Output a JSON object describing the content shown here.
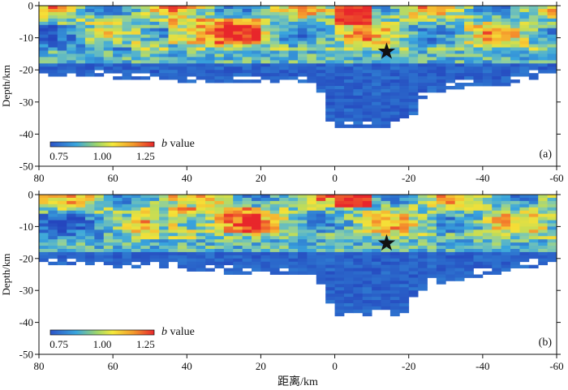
{
  "chart_data": [
    {
      "type": "heatmap",
      "panel_label": "(a)",
      "ylabel": "Depth/km",
      "xlabel": "",
      "xlim": [
        80,
        -60
      ],
      "ylim": [
        0,
        -50
      ],
      "x_ticks": [
        "80",
        "60",
        "40",
        "20",
        "0",
        "-20",
        "-40",
        "-60"
      ],
      "y_ticks": [
        "0",
        "-10",
        "-20",
        "-30",
        "-40",
        "-50"
      ],
      "x_tick_values": [
        80,
        60,
        40,
        20,
        0,
        -20,
        -40,
        -60
      ],
      "y_tick_values": [
        0,
        -10,
        -20,
        -30,
        -40,
        -50
      ],
      "colorbar": {
        "label_italic": "b",
        "label_rest": " value",
        "ticks": [
          "0.75",
          "1.00",
          "1.25"
        ],
        "range": [
          0.7,
          1.3
        ]
      },
      "star": {
        "x": -14,
        "y": -14
      },
      "lower_boundary": [
        [
          80,
          -22
        ],
        [
          60,
          -22
        ],
        [
          45,
          -23
        ],
        [
          30,
          -24
        ],
        [
          15,
          -24
        ],
        [
          5,
          -24
        ],
        [
          3,
          -28
        ],
        [
          2,
          -35
        ],
        [
          0,
          -37
        ],
        [
          -5,
          -38
        ],
        [
          -15,
          -38
        ],
        [
          -20,
          -36
        ],
        [
          -25,
          -27
        ],
        [
          -35,
          -25
        ],
        [
          -45,
          -25
        ],
        [
          -55,
          -22
        ],
        [
          -60,
          -20
        ]
      ],
      "upper_high_region": [
        [
          -10,
          0
        ],
        [
          -60,
          0
        ],
        [
          -60,
          -6
        ],
        [
          -55,
          -8
        ],
        [
          -50,
          -13
        ],
        [
          -40,
          -12
        ],
        [
          -30,
          -11
        ],
        [
          -20,
          -11
        ],
        [
          -10,
          -9
        ],
        [
          -5,
          -7
        ],
        [
          0,
          -6
        ]
      ],
      "description": "b-value cross section, panel a"
    },
    {
      "type": "heatmap",
      "panel_label": "(b)",
      "ylabel": "Depth/km",
      "xlabel": "距离/km",
      "xlim": [
        80,
        -60
      ],
      "ylim": [
        0,
        -50
      ],
      "x_ticks": [
        "80",
        "60",
        "40",
        "20",
        "0",
        "-20",
        "-40",
        "-60"
      ],
      "y_ticks": [
        "0",
        "-10",
        "-20",
        "-30",
        "-40",
        "-50"
      ],
      "x_tick_values": [
        80,
        60,
        40,
        20,
        0,
        -20,
        -40,
        -60
      ],
      "y_tick_values": [
        0,
        -10,
        -20,
        -30,
        -40,
        -50
      ],
      "colorbar": {
        "label_italic": "b",
        "label_rest": " value",
        "ticks": [
          "0.75",
          "1.00",
          "1.25"
        ],
        "range": [
          0.7,
          1.3
        ]
      },
      "star": {
        "x": -14,
        "y": -15
      },
      "lower_boundary": [
        [
          80,
          -22
        ],
        [
          60,
          -22
        ],
        [
          45,
          -23
        ],
        [
          30,
          -24
        ],
        [
          15,
          -25
        ],
        [
          5,
          -25
        ],
        [
          3,
          -29
        ],
        [
          2,
          -35
        ],
        [
          0,
          -37
        ],
        [
          -5,
          -38
        ],
        [
          -15,
          -38
        ],
        [
          -20,
          -36
        ],
        [
          -25,
          -28
        ],
        [
          -35,
          -26
        ],
        [
          -45,
          -24
        ],
        [
          -55,
          -22
        ],
        [
          -60,
          -20
        ]
      ],
      "upper_high_region": [
        [
          -10,
          0
        ],
        [
          -60,
          0
        ],
        [
          -60,
          -8
        ],
        [
          -55,
          -13
        ],
        [
          -50,
          -16
        ],
        [
          -40,
          -16
        ],
        [
          -30,
          -15
        ],
        [
          -20,
          -13
        ],
        [
          -10,
          -11
        ],
        [
          0,
          -8
        ],
        [
          5,
          -4
        ]
      ],
      "description": "b-value cross section, panel b"
    }
  ]
}
